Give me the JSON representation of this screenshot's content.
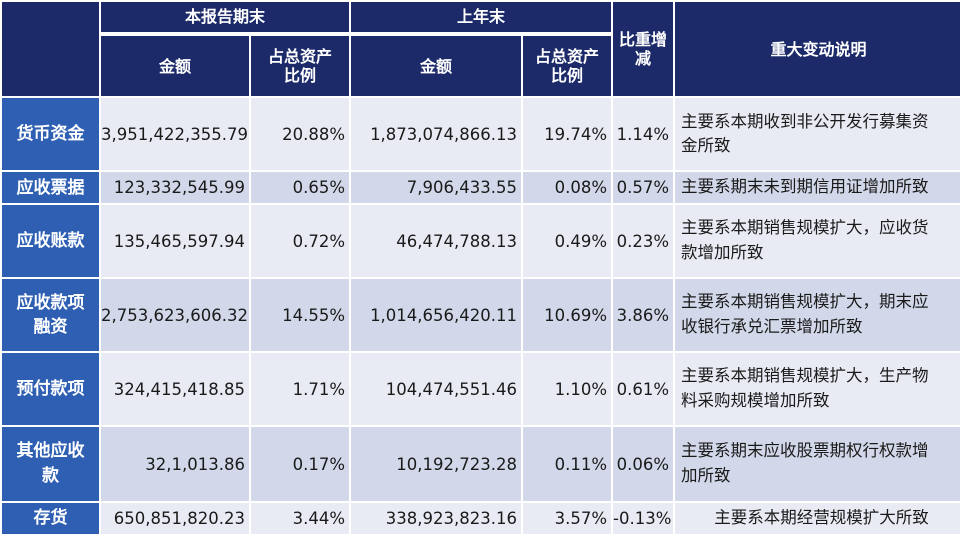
{
  "header": {
    "current_period": "本报告期末",
    "prior_year_end": "上年末",
    "amount": "金额",
    "ratio_line1": "占总资产",
    "ratio_line2": "比例",
    "change_line1": "比重增",
    "change_line2": "减",
    "explanation": "重大变动说明"
  },
  "rows": [
    {
      "label_line1": "货币资金",
      "label_line2": "",
      "current_amount": "3,951,422,355.79",
      "current_ratio": "20.88%",
      "prior_amount": "1,873,074,866.13",
      "prior_ratio": "19.74%",
      "change": "1.14%",
      "desc_line1": "主要系本期收到非公开发行募集资",
      "desc_line2": "金所致"
    },
    {
      "label_line1": "应收票据",
      "label_line2": "",
      "current_amount": "123,332,545.99",
      "current_ratio": "0.65%",
      "prior_amount": "7,906,433.55",
      "prior_ratio": "0.08%",
      "change": "0.57%",
      "desc_line1": "主要系期末未到期信用证增加所致",
      "desc_line2": ""
    },
    {
      "label_line1": "应收账款",
      "label_line2": "",
      "current_amount": "135,465,597.94",
      "current_ratio": "0.72%",
      "prior_amount": "46,474,788.13",
      "prior_ratio": "0.49%",
      "change": "0.23%",
      "desc_line1": "主要系本期销售规模扩大，应收货",
      "desc_line2": "款增加所致"
    },
    {
      "label_line1": "应收款项",
      "label_line2": "融资",
      "current_amount": "2,753,623,606.32",
      "current_ratio": "14.55%",
      "prior_amount": "1,014,656,420.11",
      "prior_ratio": "10.69%",
      "change": "3.86%",
      "desc_line1": "主要系本期销售规模扩大，期末应",
      "desc_line2": "收银行承兑汇票增加所致"
    },
    {
      "label_line1": "预付款项",
      "label_line2": "",
      "current_amount": "324,415,418.85",
      "current_ratio": "1.71%",
      "prior_amount": "104,474,551.46",
      "prior_ratio": "1.10%",
      "change": "0.61%",
      "desc_line1": "主要系本期销售规模扩大，生产物",
      "desc_line2": "料采购规模增加所致"
    },
    {
      "label_line1": "其他应收",
      "label_line2": "款",
      "current_amount": "32,1,013.86",
      "current_ratio": "0.17%",
      "prior_amount": "10,192,723.28",
      "prior_ratio": "0.11%",
      "change": "0.06%",
      "desc_line1": "主要系期末应收股票期权行权款增",
      "desc_line2": "加所致"
    },
    {
      "label_line1": "存货",
      "label_line2": "",
      "current_amount": "650,851,820.23",
      "current_ratio": "3.44%",
      "prior_amount": "338,923,823.16",
      "prior_ratio": "3.57%",
      "change": "-0.13%",
      "desc_line1": "主要系本期经营规模扩大所致",
      "desc_line2": ""
    }
  ],
  "colors": {
    "header_bg": "#1d2a6a",
    "label_bg": "#2e5fb3",
    "row_light": "#e8ebf3",
    "row_dark": "#d2d8e9"
  }
}
